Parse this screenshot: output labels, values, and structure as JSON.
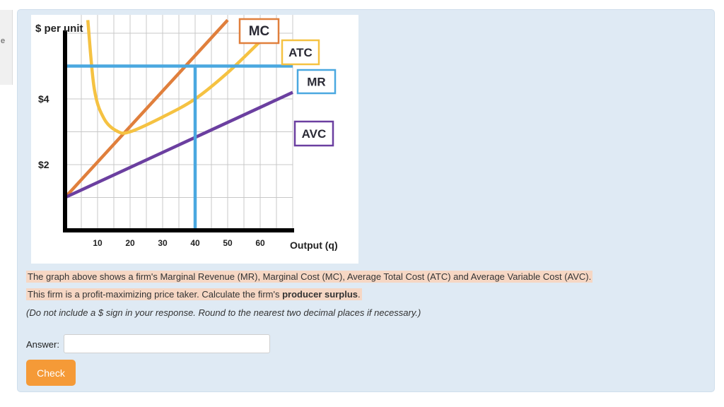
{
  "side_tab": {
    "glyph": "e"
  },
  "chart_data": {
    "type": "line",
    "ylabel": "$ per unit",
    "xlabel": "Output (q)",
    "x_ticks": [
      10,
      20,
      30,
      40,
      50,
      60
    ],
    "y_tick_labels": [
      {
        "label": "$4",
        "value": 4
      },
      {
        "label": "$2",
        "value": 2
      }
    ],
    "xlim": [
      0,
      70
    ],
    "ylim": [
      0,
      7
    ],
    "grid": true,
    "series": [
      {
        "name": "MC",
        "color": "#e07f3c",
        "x": [
          0,
          50
        ],
        "y": [
          1,
          6.4
        ]
      },
      {
        "name": "ATC",
        "color": "#f5c242",
        "x": [
          7,
          9,
          12,
          16,
          20,
          30,
          40,
          50,
          60
        ],
        "y": [
          6.4,
          4.3,
          3.4,
          3.02,
          3.0,
          3.45,
          4.0,
          4.8,
          5.75
        ]
      },
      {
        "name": "MR",
        "color": "#4aa8e0",
        "x": [
          0,
          70
        ],
        "y": [
          5,
          5
        ]
      },
      {
        "name": "AVC",
        "color": "#6b3fa0",
        "x": [
          0,
          70
        ],
        "y": [
          1,
          4.2
        ]
      }
    ],
    "annotations": [
      {
        "type": "vline",
        "x": 40,
        "y_from": 0,
        "y_to": 5,
        "color": "#4aa8e0"
      }
    ]
  },
  "question": {
    "line1": "The graph above shows a firm's Marginal Revenue (MR), Marginal Cost (MC), Average Total Cost (ATC) and Average Variable Cost (AVC).",
    "line2_prefix": "This firm is a profit-maximizing price taker. Calculate the firm's ",
    "line2_bold": "producer surplus",
    "line2_suffix": ".",
    "line3": "(Do not include a $ sign in your response. Round to the nearest two decimal places if necessary.)"
  },
  "answer": {
    "label": "Answer:",
    "value": "",
    "placeholder": ""
  },
  "check_button": {
    "label": "Check",
    "color": "#f59a37"
  }
}
